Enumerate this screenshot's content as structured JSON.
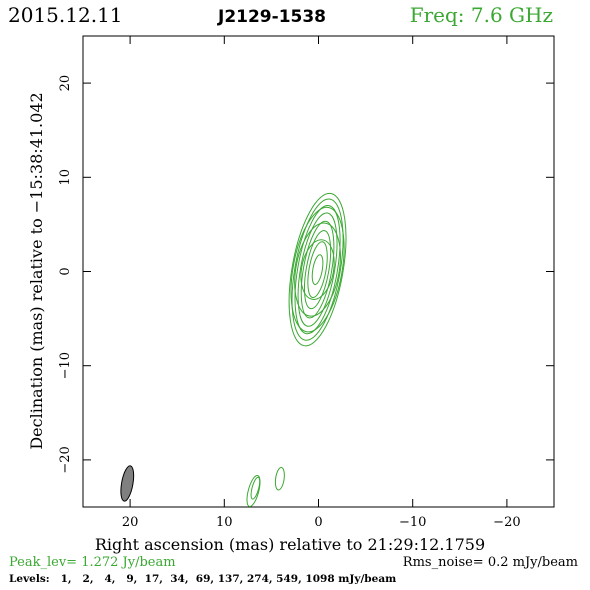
{
  "header": {
    "date": "2015.12.11",
    "source": "J2129-1538",
    "frequency": "Freq: 7.6 GHz"
  },
  "colors": {
    "accent_green": "#3aa832",
    "axis": "#000000",
    "beam_fill": "#808080"
  },
  "footer": {
    "peak_level": "Peak_lev=  1.272 Jy/beam",
    "rms_noise": "Rms_noise=  0.2 mJy/beam",
    "levels": "Levels:   1,   2,   4,   9,  17,  34,  69, 137, 274, 549, 1098 mJy/beam"
  },
  "chart_data": {
    "type": "contour",
    "xlabel": "Right ascension (mas) relative to 21:29:12.1759",
    "ylabel": "Declination (mas) relative to −15:38:41.042",
    "xlim": [
      25,
      -25
    ],
    "ylim": [
      -25,
      25
    ],
    "x_ticks": [
      20,
      10,
      0,
      -10,
      -20
    ],
    "x_tick_labels": [
      "20",
      "10",
      "0",
      "−10",
      "−20"
    ],
    "y_ticks": [
      20,
      10,
      0,
      -10,
      -20
    ],
    "y_tick_labels": [
      "20",
      "10",
      "0",
      "−10",
      "−20"
    ],
    "contour_levels_mJy": [
      1,
      2,
      4,
      9,
      17,
      34,
      69,
      137,
      274,
      549,
      1098
    ],
    "peak_Jy_per_beam": 1.272,
    "rms_mJy_per_beam": 0.2,
    "main_component": {
      "center": [
        0.1,
        0.2
      ],
      "angle_deg": 10,
      "contours": [
        {
          "a": 3.2,
          "b": 1.7
        },
        {
          "a": 5.0,
          "b": 2.3
        },
        {
          "a": 6.7,
          "b": 2.6
        },
        {
          "a": 8.2,
          "b": 2.7
        },
        {
          "a": 7.6,
          "b": 2.4
        },
        {
          "a": 6.9,
          "b": 2.1
        },
        {
          "a": 6.1,
          "b": 1.8
        },
        {
          "a": 5.2,
          "b": 1.5
        },
        {
          "a": 4.2,
          "b": 1.2
        },
        {
          "a": 3.0,
          "b": 0.9
        },
        {
          "a": 1.6,
          "b": 0.5
        }
      ]
    },
    "minor_components": [
      {
        "center": [
          6.9,
          -23.3
        ],
        "a": 1.7,
        "b": 0.55,
        "angle_deg": 15
      },
      {
        "center": [
          6.7,
          -23.0
        ],
        "a": 1.2,
        "b": 0.35,
        "angle_deg": 15
      },
      {
        "center": [
          4.1,
          -22.0
        ],
        "a": 1.2,
        "b": 0.45,
        "angle_deg": 8
      }
    ],
    "beam": {
      "center": [
        20.3,
        -22.5
      ],
      "a": 1.9,
      "b": 0.6,
      "angle_deg": 10
    }
  }
}
